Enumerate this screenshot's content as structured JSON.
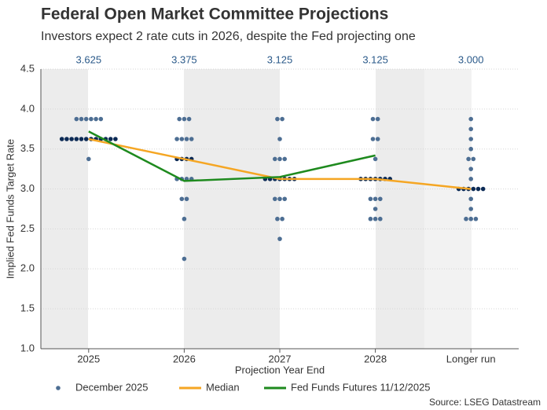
{
  "chart_data": {
    "type": "dot_plot",
    "title": "Federal Open Market Committee Projections",
    "subtitle": "Investors expect 2 rate cuts in 2026, despite the Fed projecting one",
    "y_label": "Implied Fed Funds Target Rate",
    "x_label": "Projection Year End",
    "source": "Source: LSEG Datastream",
    "categories": [
      "2025",
      "2026",
      "2027",
      "2028",
      "Longer run"
    ],
    "ylim": [
      1.0,
      4.5
    ],
    "yticks": [
      {
        "value": 1.0,
        "label": "1.0"
      },
      {
        "value": 1.5,
        "label": "1.5"
      },
      {
        "value": 2.0,
        "label": "2.0"
      },
      {
        "value": 2.5,
        "label": "2.5"
      },
      {
        "value": 3.0,
        "label": "3.0"
      },
      {
        "value": 3.5,
        "label": "3.5"
      },
      {
        "value": 4.0,
        "label": "4.0"
      },
      {
        "value": 4.5,
        "label": "4.5"
      }
    ],
    "grid": true,
    "dots": {
      "name": "December 2025",
      "color": "#4d6e93",
      "highlight_color": "#0c2a55",
      "values": [
        [
          3.875,
          3.875,
          3.875,
          3.875,
          3.875,
          3.875,
          3.625,
          3.625,
          3.625,
          3.625,
          3.625,
          3.625,
          3.625,
          3.625,
          3.625,
          3.625,
          3.625,
          3.625,
          3.375
        ],
        [
          3.875,
          3.875,
          3.875,
          3.625,
          3.625,
          3.625,
          3.625,
          3.375,
          3.375,
          3.375,
          3.375,
          3.125,
          3.125,
          3.125,
          3.125,
          2.875,
          2.875,
          2.625,
          2.125
        ],
        [
          3.875,
          3.875,
          3.625,
          3.375,
          3.375,
          3.375,
          3.125,
          3.125,
          3.125,
          3.125,
          3.125,
          3.125,
          3.125,
          2.875,
          2.875,
          2.875,
          2.625,
          2.625,
          2.375
        ],
        [
          3.875,
          3.875,
          3.625,
          3.625,
          3.375,
          3.125,
          3.125,
          3.125,
          3.125,
          3.125,
          3.125,
          3.125,
          2.875,
          2.875,
          2.875,
          2.75,
          2.625,
          2.625,
          2.625
        ],
        [
          3.875,
          3.75,
          3.625,
          3.5,
          3.375,
          3.375,
          3.25,
          3.125,
          3.0,
          3.0,
          3.0,
          3.0,
          3.0,
          3.0,
          2.875,
          2.75,
          2.625,
          2.625,
          2.625
        ]
      ]
    },
    "series": [
      {
        "name": "Median",
        "color": "#f5a623",
        "values": [
          3.625,
          3.375,
          3.125,
          3.125,
          3.0
        ],
        "value_labels": [
          "3.625",
          "3.375",
          "3.125",
          "3.125",
          "3.000"
        ]
      },
      {
        "name": "Fed Funds Futures 11/12/2025",
        "color": "#1e8a1e",
        "values": [
          3.72,
          3.1,
          3.15,
          3.42,
          null
        ]
      }
    ]
  }
}
